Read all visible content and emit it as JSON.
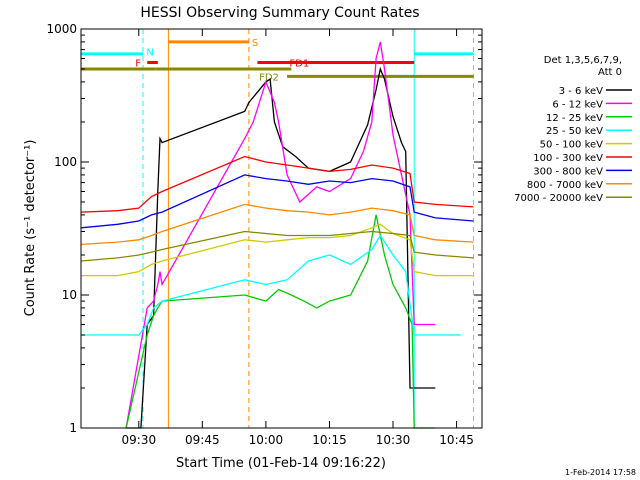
{
  "footer_date": "1-Feb-2014 17:58",
  "chart_data": {
    "type": "line",
    "title": "HESSI Observing Summary Count Rates",
    "xlabel": "Start Time (01-Feb-14 09:16:22)",
    "ylabel": "Count Rate (s⁻¹ detector⁻¹)",
    "y_scale": "log",
    "ylim": [
      1,
      1000
    ],
    "xlim": [
      "09:16:22",
      "10:51:00"
    ],
    "x_ticks": [
      "09:30",
      "09:45",
      "10:00",
      "10:15",
      "10:30",
      "10:45"
    ],
    "y_ticks": [
      "1",
      "10",
      "100",
      "1000"
    ],
    "legend_title": [
      "Det 1,3,5,6,7,9,",
      "Att 0"
    ],
    "legend_position": "right",
    "series": [
      {
        "name": "3 - 6 keV",
        "color": "#000000",
        "x": [
          "09:27:00",
          "09:29:00",
          "09:30:30",
          "09:32:00",
          "09:33:30",
          "09:34:30",
          "09:35:00",
          "09:35:30",
          "09:55:00",
          "09:56:00",
          "10:00:00",
          "10:01:00",
          "10:02:00",
          "10:04:00",
          "10:07:00",
          "10:10:00",
          "10:15:00",
          "10:20:00",
          "10:24:00",
          "10:26:00",
          "10:27:00",
          "10:28:00",
          "10:30:00",
          "10:32:00",
          "10:33:00",
          "10:34:00",
          "10:35:00",
          "10:40:00"
        ],
        "y": [
          1,
          1,
          1,
          6,
          7,
          60,
          150,
          140,
          240,
          280,
          400,
          420,
          200,
          130,
          110,
          90,
          85,
          100,
          190,
          350,
          500,
          420,
          220,
          140,
          120,
          2,
          2,
          2
        ]
      },
      {
        "name": "6 - 12 keV",
        "color": "#ff00ff",
        "x": [
          "09:27:00",
          "09:32:00",
          "09:33:30",
          "09:34:30",
          "09:35:00",
          "09:35:30",
          "09:55:00",
          "09:57:00",
          "10:00:00",
          "10:02:00",
          "10:03:00",
          "10:05:00",
          "10:08:00",
          "10:12:00",
          "10:15:00",
          "10:20:00",
          "10:23:00",
          "10:25:00",
          "10:26:00",
          "10:27:00",
          "10:28:00",
          "10:30:00",
          "10:32:00",
          "10:34:00",
          "10:35:00",
          "10:40:00"
        ],
        "y": [
          1,
          8,
          9,
          12,
          15,
          12,
          150,
          200,
          400,
          280,
          200,
          80,
          50,
          65,
          60,
          75,
          120,
          200,
          600,
          800,
          500,
          160,
          80,
          40,
          6,
          6
        ]
      },
      {
        "name": "12 - 25 keV",
        "color": "#00cc00",
        "x": [
          "09:27:00",
          "09:32:00",
          "09:33:30",
          "09:34:30",
          "09:35:30",
          "09:55:00",
          "10:00:00",
          "10:03:00",
          "10:06:00",
          "10:09:00",
          "10:12:00",
          "10:15:00",
          "10:20:00",
          "10:24:00",
          "10:26:00",
          "10:28:00",
          "10:30:00",
          "10:33:00",
          "10:34:30",
          "10:35:00",
          "10:40:00"
        ],
        "y": [
          1,
          5,
          7,
          8,
          9,
          10,
          9,
          11,
          10,
          9,
          8,
          9,
          10,
          18,
          40,
          20,
          12,
          8,
          6,
          1,
          1
        ]
      },
      {
        "name": "25 - 50 keV",
        "color": "#00ffff",
        "x": [
          "09:16:22",
          "09:30:00",
          "09:32:00",
          "09:33:30",
          "09:35:30",
          "09:55:00",
          "10:00:00",
          "10:05:00",
          "10:10:00",
          "10:15:00",
          "10:20:00",
          "10:25:00",
          "10:27:00",
          "10:30:00",
          "10:33:00",
          "10:35:00",
          "10:40:00",
          "10:46:00"
        ],
        "y": [
          5,
          5,
          6,
          8,
          9,
          13,
          12,
          13,
          18,
          20,
          17,
          22,
          28,
          20,
          15,
          5,
          5,
          5
        ]
      },
      {
        "name": "50 - 100 keV",
        "color": "#cccc00",
        "x": [
          "09:16:22",
          "09:25:00",
          "09:30:00",
          "09:33:00",
          "09:35:30",
          "09:55:00",
          "10:00:00",
          "10:05:00",
          "10:10:00",
          "10:15:00",
          "10:20:00",
          "10:25:00",
          "10:27:00",
          "10:30:00",
          "10:34:00",
          "10:35:00",
          "10:40:00",
          "10:49:00"
        ],
        "y": [
          14,
          14,
          15,
          17,
          18,
          26,
          25,
          26,
          27,
          27,
          28,
          32,
          34,
          29,
          26,
          15,
          14,
          14
        ]
      },
      {
        "name": "100 - 300 keV",
        "color": "#ff0000",
        "x": [
          "09:16:22",
          "09:25:00",
          "09:30:00",
          "09:33:00",
          "09:35:30",
          "09:55:00",
          "10:00:00",
          "10:05:00",
          "10:10:00",
          "10:15:00",
          "10:20:00",
          "10:25:00",
          "10:30:00",
          "10:34:00",
          "10:35:00",
          "10:40:00",
          "10:49:00"
        ],
        "y": [
          42,
          43,
          45,
          55,
          60,
          110,
          100,
          95,
          90,
          85,
          88,
          95,
          90,
          82,
          50,
          48,
          46
        ]
      },
      {
        "name": "300 - 800 keV",
        "color": "#0000ee",
        "x": [
          "09:16:22",
          "09:25:00",
          "09:30:00",
          "09:33:00",
          "09:35:30",
          "09:55:00",
          "10:00:00",
          "10:05:00",
          "10:10:00",
          "10:15:00",
          "10:20:00",
          "10:25:00",
          "10:30:00",
          "10:34:00",
          "10:35:00",
          "10:40:00",
          "10:49:00"
        ],
        "y": [
          32,
          34,
          36,
          40,
          42,
          80,
          75,
          72,
          68,
          72,
          70,
          75,
          72,
          65,
          42,
          38,
          36
        ]
      },
      {
        "name": "800 - 7000 keV",
        "color": "#ff8800",
        "x": [
          "09:16:22",
          "09:25:00",
          "09:30:00",
          "09:33:00",
          "09:35:30",
          "09:55:00",
          "10:00:00",
          "10:05:00",
          "10:10:00",
          "10:15:00",
          "10:20:00",
          "10:25:00",
          "10:30:00",
          "10:34:00",
          "10:35:00",
          "10:40:00",
          "10:49:00"
        ],
        "y": [
          24,
          25,
          26,
          28,
          30,
          48,
          45,
          43,
          42,
          40,
          42,
          45,
          43,
          40,
          28,
          26,
          25
        ]
      },
      {
        "name": "7000 - 20000 keV",
        "color": "#888800",
        "x": [
          "09:16:22",
          "09:25:00",
          "09:30:00",
          "09:33:00",
          "09:35:30",
          "09:55:00",
          "10:00:00",
          "10:05:00",
          "10:10:00",
          "10:15:00",
          "10:20:00",
          "10:25:00",
          "10:30:00",
          "10:34:00",
          "10:35:00",
          "10:40:00",
          "10:49:00"
        ],
        "y": [
          18,
          19,
          20,
          21,
          22,
          30,
          29,
          28,
          28,
          28,
          29,
          30,
          29,
          28,
          21,
          20,
          19
        ]
      }
    ],
    "flag_bars": [
      {
        "label": "",
        "color": "#00ffff",
        "y": 650,
        "x": [
          "09:16:22",
          "09:31:00"
        ]
      },
      {
        "label": "",
        "color": "#00ffff",
        "y": 650,
        "x": [
          "10:35:00",
          "10:49:00"
        ]
      },
      {
        "label": "S",
        "color": "#ff8800",
        "y": 800,
        "x": [
          "09:37:00",
          "09:56:00"
        ]
      },
      {
        "label": "N",
        "color": "#00ffff",
        "y": 680,
        "x": [
          "09:32:30",
          "09:32:30"
        ]
      },
      {
        "label": "F",
        "color": "#ff0000",
        "y": 560,
        "x": [
          "09:32:00",
          "09:34:30"
        ]
      },
      {
        "label": "FD1",
        "color": "#ff0000",
        "y": 560,
        "x": [
          "09:58:00",
          "10:35:00"
        ]
      },
      {
        "label": "",
        "color": "#888800",
        "y": 500,
        "x": [
          "09:16:22",
          "09:34:00"
        ]
      },
      {
        "label": "",
        "color": "#888800",
        "y": 500,
        "x": [
          "09:34:00",
          "10:06:00"
        ]
      },
      {
        "label": "FD2",
        "color": "#888800",
        "y": 440,
        "x": [
          "10:05:00",
          "10:49:00"
        ]
      }
    ],
    "vertical_markers": [
      {
        "x": "09:31:00",
        "color": "#00ffff",
        "style": "dashed"
      },
      {
        "x": "09:37:00",
        "color": "#ff8800",
        "style": "solid"
      },
      {
        "x": "09:56:00",
        "color": "#ff8800",
        "style": "dashed"
      },
      {
        "x": "10:35:00",
        "color": "#00ffff",
        "style": "solid"
      },
      {
        "x": "10:49:00",
        "color": "#00ffff",
        "style": "dashed"
      }
    ]
  }
}
